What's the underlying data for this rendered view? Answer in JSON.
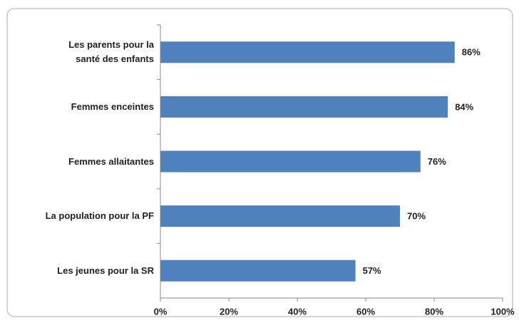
{
  "chart_data": {
    "type": "barh",
    "categories": [
      "Les parents pour la\nsanté des enfants",
      "Femmes enceintes",
      "Femmes allaitantes",
      "La population pour la PF",
      "Les jeunes pour la SR"
    ],
    "values": [
      86,
      84,
      76,
      70,
      57
    ],
    "value_labels": [
      "86%",
      "84%",
      "76%",
      "70%",
      "57%"
    ],
    "color": "#4f81bd",
    "xlim": [
      0,
      100
    ],
    "xticks": [
      {
        "value": 0,
        "label": "0%"
      },
      {
        "value": 20,
        "label": "20%"
      },
      {
        "value": 40,
        "label": "40%"
      },
      {
        "value": 60,
        "label": "60%"
      },
      {
        "value": 80,
        "label": "80%"
      },
      {
        "value": 100,
        "label": "100%"
      }
    ],
    "grid": false
  }
}
